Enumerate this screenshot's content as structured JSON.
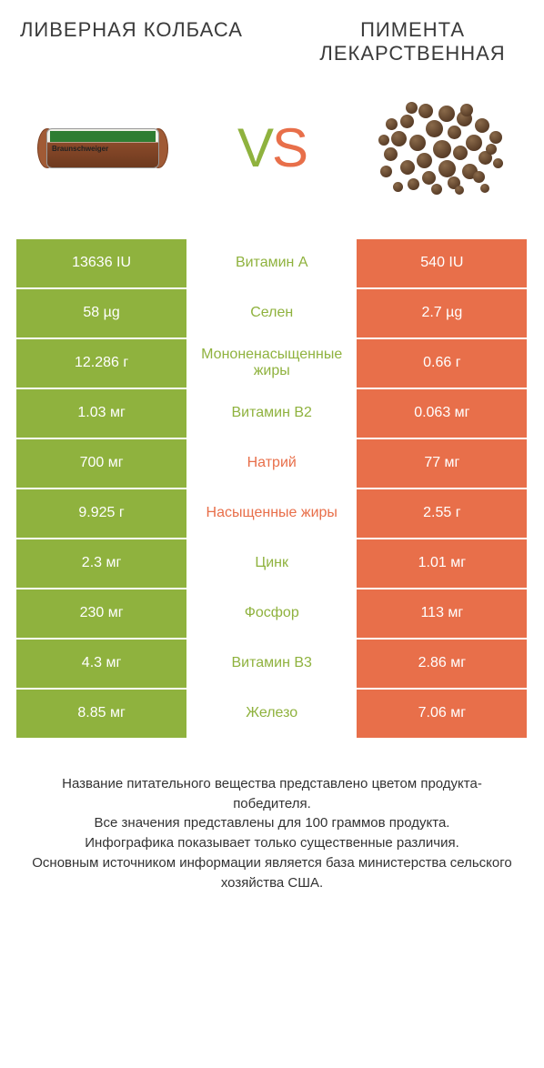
{
  "titles": {
    "left": "ЛИВЕРНАЯ КОЛБАСА",
    "right": "ПИМЕНТА ЛЕКАРСТВЕННАЯ"
  },
  "vs": {
    "v": "V",
    "s": "S"
  },
  "colors": {
    "green": "#8fb23e",
    "orange": "#e86f4a",
    "cell_gap_bg": "#ffffff",
    "text_white": "#ffffff"
  },
  "rows": [
    {
      "left": "13636 IU",
      "mid": "Витамин A",
      "right": "540 IU",
      "mid_color": "green"
    },
    {
      "left": "58 µg",
      "mid": "Селен",
      "right": "2.7 µg",
      "mid_color": "green"
    },
    {
      "left": "12.286 г",
      "mid": "Мононенасыщенные жиры",
      "right": "0.66 г",
      "mid_color": "green"
    },
    {
      "left": "1.03 мг",
      "mid": "Витамин B2",
      "right": "0.063 мг",
      "mid_color": "green"
    },
    {
      "left": "700 мг",
      "mid": "Натрий",
      "right": "77 мг",
      "mid_color": "orange"
    },
    {
      "left": "9.925 г",
      "mid": "Насыщенные жиры",
      "right": "2.55 г",
      "mid_color": "orange"
    },
    {
      "left": "2.3 мг",
      "mid": "Цинк",
      "right": "1.01 мг",
      "mid_color": "green"
    },
    {
      "left": "230 мг",
      "mid": "Фосфор",
      "right": "113 мг",
      "mid_color": "green"
    },
    {
      "left": "4.3 мг",
      "mid": "Витамин B3",
      "right": "2.86 мг",
      "mid_color": "green"
    },
    {
      "left": "8.85 мг",
      "mid": "Железо",
      "right": "7.06 мг",
      "mid_color": "green"
    }
  ],
  "sausage_label": "Braunschweiger",
  "footnote": "Название питательного вещества представлено цветом продукта-победителя.\nВсе значения представлены для 100 граммов продукта.\nИнфографика показывает только существенные различия.\nОсновным источником информации является база министерства сельского хозяйства США.",
  "berries": [
    [
      72,
      8,
      18
    ],
    [
      50,
      6,
      16
    ],
    [
      92,
      14,
      17
    ],
    [
      30,
      18,
      15
    ],
    [
      112,
      22,
      16
    ],
    [
      58,
      24,
      19
    ],
    [
      82,
      30,
      15
    ],
    [
      20,
      36,
      17
    ],
    [
      40,
      40,
      18
    ],
    [
      102,
      40,
      18
    ],
    [
      128,
      36,
      14
    ],
    [
      66,
      46,
      20
    ],
    [
      88,
      52,
      16
    ],
    [
      12,
      54,
      15
    ],
    [
      48,
      60,
      17
    ],
    [
      116,
      58,
      15
    ],
    [
      30,
      68,
      16
    ],
    [
      72,
      68,
      19
    ],
    [
      98,
      72,
      17
    ],
    [
      54,
      80,
      15
    ],
    [
      82,
      86,
      14
    ],
    [
      38,
      88,
      13
    ],
    [
      64,
      94,
      12
    ],
    [
      110,
      80,
      13
    ],
    [
      8,
      74,
      13
    ],
    [
      124,
      50,
      12
    ],
    [
      96,
      6,
      14
    ],
    [
      36,
      4,
      13
    ],
    [
      14,
      22,
      13
    ],
    [
      6,
      40,
      12
    ],
    [
      132,
      66,
      11
    ],
    [
      118,
      94,
      10
    ],
    [
      22,
      92,
      11
    ],
    [
      90,
      96,
      10
    ]
  ]
}
